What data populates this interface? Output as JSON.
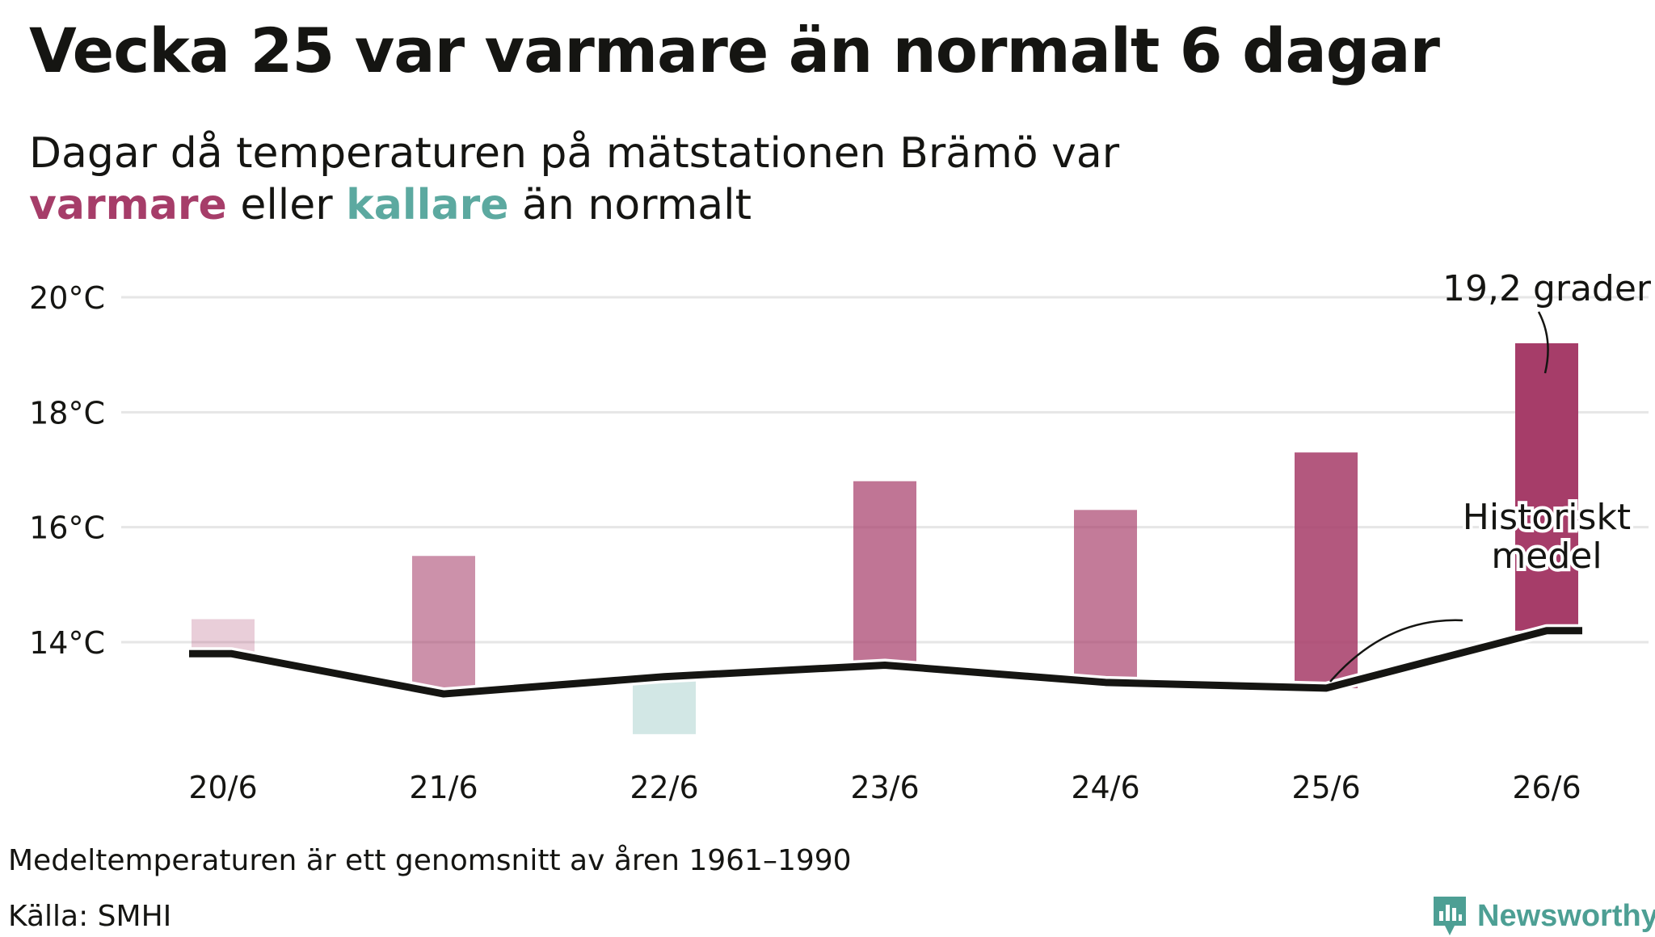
{
  "title": "Vecka 25 var varmare än normalt 6 dagar",
  "subtitle": {
    "line1": "Dagar då temperaturen på mätstationen Brämö var",
    "warm_word": "varmare",
    "mid_text": " eller ",
    "cold_word": "kallare",
    "end_text": " än normalt"
  },
  "colors": {
    "warm": "#a63d69",
    "cold": "#5ca9a0",
    "mean_line": "#151512",
    "grid": "#e6e6e6",
    "brand": "#4d9f94"
  },
  "chart_data": {
    "type": "bar",
    "categories": [
      "20/6",
      "21/6",
      "22/6",
      "23/6",
      "24/6",
      "25/6",
      "26/6"
    ],
    "series": [
      {
        "values": [
          14.4,
          15.5,
          12.4,
          16.8,
          16.3,
          17.3,
          19.2
        ]
      },
      {
        "name": "Historiskt medel",
        "values": [
          13.8,
          13.1,
          13.4,
          13.6,
          13.3,
          13.2,
          14.2
        ]
      }
    ],
    "y_ticks": [
      "20°C",
      "18°C",
      "16°C",
      "14°C"
    ],
    "ylim": [
      11.7,
      20.5
    ],
    "grid": true,
    "annotations": {
      "max_label": "19,2 grader",
      "mean_label_line1": "Historiskt",
      "mean_label_line2": "medel"
    }
  },
  "footnote": "Medeltemperaturen är ett genomsnitt av åren 1961–1990",
  "source": "Källa: SMHI",
  "brand": {
    "name": "Newsworthy",
    "icon": "newsworthy-logo-icon"
  }
}
